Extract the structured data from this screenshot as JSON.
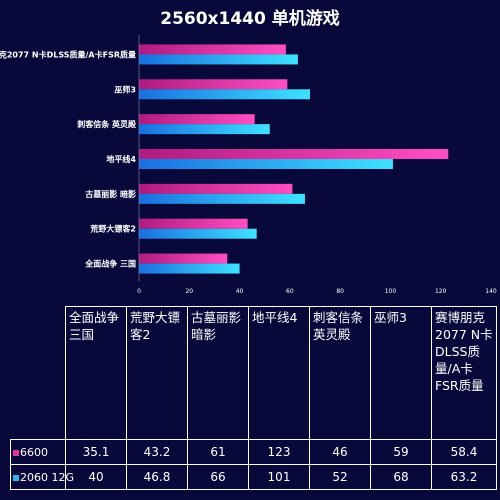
{
  "colors": {
    "background": "#08093a",
    "series_6600": "#e0349f",
    "series_2060": "#26b6f0"
  },
  "chart_data": {
    "type": "bar",
    "orientation": "horizontal",
    "title": "2560x1440 单机游戏",
    "categories": [
      "全面战争 三国",
      "荒野大镖客2",
      "古墓丽影 暗影",
      "地平线4",
      "刺客信条 英灵殿",
      "巫师3",
      "赛博朋克2077 N卡DLSS质量/A卡FSR质量"
    ],
    "bar_labels": [
      "全面战争 三国",
      "荒野大镖客2",
      "古墓丽影 暗影",
      "地平线4",
      "刺客信条 英灵殿",
      "巫师3",
      "赛博朋克2077 N卡DLSS质量/A卡FSR质量"
    ],
    "table_headers": [
      "全面战争 三国",
      "荒野大镖客2",
      "古墓丽影 暗影",
      "地平线4",
      "刺客信条 英灵殿",
      "巫师3",
      "赛博朋克2077 N卡DLSS质量/A卡FSR质量"
    ],
    "series": [
      {
        "name": "6600",
        "values": [
          35.1,
          43.2,
          61,
          123,
          46,
          59,
          58.4
        ]
      },
      {
        "name": "2060 12G",
        "values": [
          40,
          46.8,
          66,
          101,
          52,
          68,
          63.2
        ]
      }
    ],
    "xlim": [
      0,
      140
    ],
    "x_ticks": [
      0,
      20,
      40,
      60,
      80,
      100,
      120,
      140
    ],
    "grid": false,
    "legend": "table"
  }
}
